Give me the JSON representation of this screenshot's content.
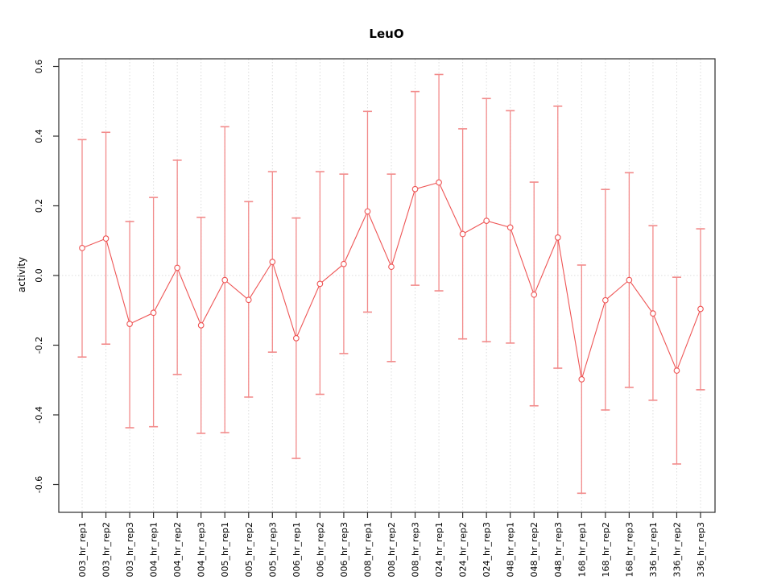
{
  "title": "LeuO",
  "chart_data": {
    "type": "line",
    "title": "LeuO",
    "xlabel": "",
    "ylabel": "activity",
    "ylim": [
      -0.66,
      0.63
    ],
    "ytick_labels": [
      "-0.6",
      "-0.4",
      "-0.2",
      "0.0",
      "0.2",
      "0.4",
      "0.6"
    ],
    "ytick_values": [
      -0.6,
      -0.4,
      -0.2,
      0.0,
      0.2,
      0.4,
      0.6
    ],
    "grid": "vertical dotted gridline at each category; horizontal dotted line at y=0; full box frame",
    "legend": "none",
    "marker": "open-circle",
    "categories": [
      "003_hr_rep1",
      "003_hr_rep2",
      "003_hr_rep3",
      "004_hr_rep1",
      "004_hr_rep2",
      "004_hr_rep3",
      "005_hr_rep1",
      "005_hr_rep2",
      "005_hr_rep3",
      "006_hr_rep1",
      "006_hr_rep2",
      "006_hr_rep3",
      "008_hr_rep1",
      "008_hr_rep2",
      "008_hr_rep3",
      "024_hr_rep1",
      "024_hr_rep2",
      "024_hr_rep3",
      "048_hr_rep1",
      "048_hr_rep2",
      "048_hr_rep3",
      "168_hr_rep1",
      "168_hr_rep2",
      "168_hr_rep3",
      "336_hr_rep1",
      "336_hr_rep2",
      "336_hr_rep3"
    ],
    "series": [
      {
        "name": "activity",
        "values": [
          0.079,
          0.106,
          -0.139,
          -0.107,
          0.022,
          -0.143,
          -0.013,
          -0.07,
          0.039,
          -0.18,
          -0.024,
          0.033,
          0.184,
          0.025,
          0.248,
          0.267,
          0.119,
          0.157,
          0.138,
          -0.055,
          0.109,
          -0.298,
          -0.071,
          -0.013,
          -0.109,
          -0.273,
          -0.096
        ],
        "error_low": [
          -0.234,
          -0.197,
          -0.437,
          -0.434,
          -0.284,
          -0.453,
          -0.451,
          -0.349,
          -0.22,
          -0.525,
          -0.341,
          -0.224,
          -0.105,
          -0.247,
          -0.028,
          -0.044,
          -0.182,
          -0.19,
          -0.194,
          -0.374,
          -0.266,
          -0.625,
          -0.386,
          -0.321,
          -0.358,
          -0.541,
          -0.328
        ],
        "error_high": [
          0.39,
          0.411,
          0.155,
          0.224,
          0.331,
          0.167,
          0.427,
          0.212,
          0.298,
          0.165,
          0.298,
          0.291,
          0.471,
          0.291,
          0.528,
          0.577,
          0.421,
          0.508,
          0.473,
          0.268,
          0.486,
          0.03,
          0.247,
          0.295,
          0.143,
          -0.005,
          0.134
        ]
      }
    ],
    "colors": {
      "series_line": "#ee5555",
      "error_bar": "#f28b8b",
      "gridline": "#dcdcdc",
      "axis": "#2b2b2b",
      "background": "#ffffff"
    }
  }
}
